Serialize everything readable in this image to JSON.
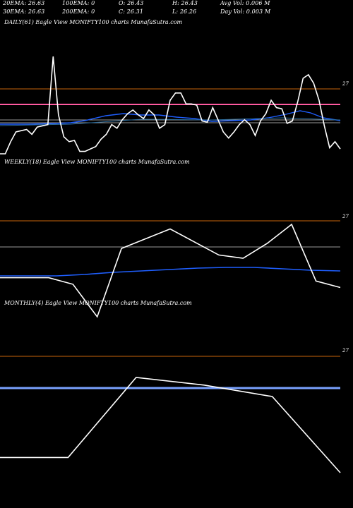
{
  "header": {
    "row1": [
      "20EMA: 26.63",
      "100EMA: 0",
      "O: 26.43",
      "H: 26.43",
      "Avg Vol: 0.006  M"
    ],
    "row2": [
      "30EMA: 26.63",
      "200EMA: 0",
      "C: 26.31",
      "L: 26.26",
      "Day Vol: 0.003 M"
    ]
  },
  "colors": {
    "background": "#000000",
    "price_line": "#ffffff",
    "ema_blue": "#1f5fff",
    "level_orange": "#c8640a",
    "level_pink": "#ff5aa0",
    "level_gray": "#9a9a9a",
    "level_blue": "#7aa2ff"
  },
  "chart_data": [
    {
      "type": "line",
      "title": "DAILY(61) Eagle  View  MONIFTY100  charts MunafaSutra.com",
      "y_tick": "27",
      "series": [
        {
          "values": [
            26.3,
            26.3,
            26.4,
            26.48,
            26.49,
            26.5,
            26.46,
            26.52,
            26.53,
            26.54,
            27.1,
            26.62,
            26.44,
            26.4,
            26.41,
            26.32,
            26.32,
            26.34,
            26.36,
            26.42,
            26.46,
            26.54,
            26.51,
            26.58,
            26.63,
            26.66,
            26.62,
            26.59,
            26.66,
            26.62,
            26.51,
            26.54,
            26.74,
            26.8,
            26.8,
            26.71,
            26.71,
            26.7,
            26.57,
            26.56,
            26.68,
            26.58,
            26.48,
            26.43,
            26.48,
            26.54,
            26.58,
            26.54,
            26.45,
            26.57,
            26.63,
            26.74,
            26.68,
            26.67,
            26.55,
            26.57,
            26.73,
            26.92,
            26.95,
            26.88,
            26.74,
            26.53,
            26.35,
            26.4,
            26.34
          ]
        }
      ]
    },
    {
      "type": "line",
      "title": "WEEKLY(18) Eagle  View  MONIFTY100  charts MunafaSutra.com",
      "y_tick": "27",
      "series": [
        {
          "values": [
            26.2,
            26.2,
            26.2,
            26.1,
            25.6,
            26.65,
            26.8,
            26.95,
            26.75,
            26.55,
            26.5,
            26.73,
            27.02,
            26.15,
            26.05
          ]
        }
      ]
    },
    {
      "type": "line",
      "title": "MONTHLY(4) Eagle  View  MONIFTY100  charts MunafaSutra.com",
      "y_tick": "27",
      "series": [
        {
          "values": [
            25.9,
            25.9,
            26.95,
            26.85,
            26.7,
            25.7
          ]
        }
      ]
    }
  ]
}
